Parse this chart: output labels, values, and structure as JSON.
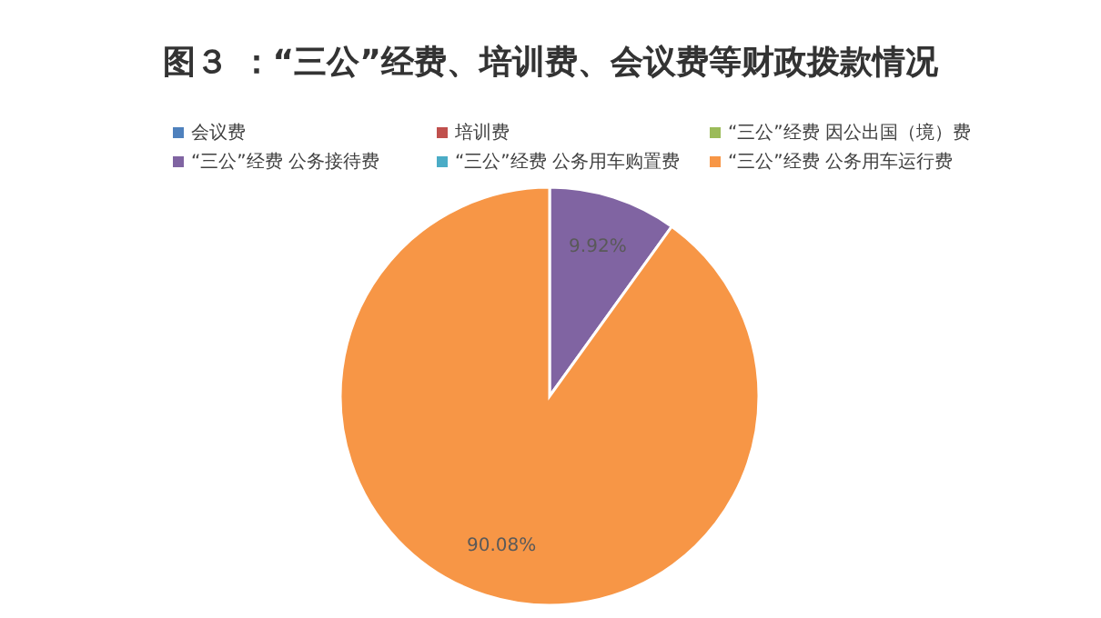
{
  "chart_data": {
    "type": "pie",
    "title": "图３ ：“三公”经费、培训费、会议费等财政拨款情况",
    "categories": [
      "会议费",
      "培训费",
      "“三公”经费 因公出国（境）费",
      "“三公”经费 公务接待费",
      "“三公”经费 公务用车购置费",
      "“三公”经费 公务用车运行费"
    ],
    "values": [
      0,
      0,
      0,
      9.92,
      0,
      90.08
    ],
    "colors": [
      "#4f81bd",
      "#c0504d",
      "#9bbb59",
      "#8064a2",
      "#4bacc6",
      "#f79646"
    ],
    "value_labels": [
      null,
      null,
      null,
      "9.92%",
      null,
      "90.08%"
    ],
    "legend": "top"
  }
}
